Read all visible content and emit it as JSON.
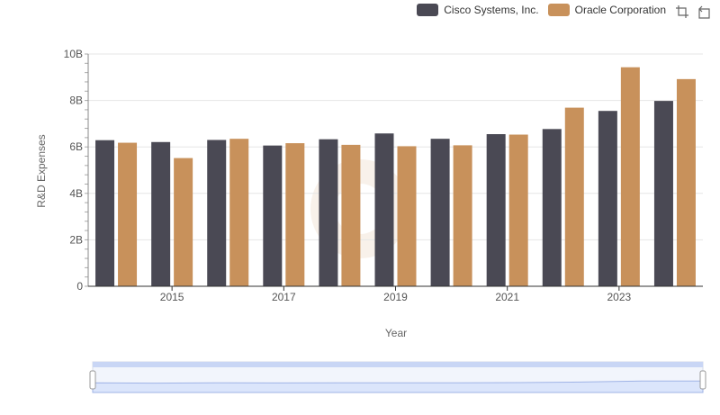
{
  "legend": {
    "items": [
      {
        "label": "Cisco Systems, Inc.",
        "color": "#4a4954"
      },
      {
        "label": "Oracle Corporation",
        "color": "#c8915b"
      }
    ]
  },
  "toolbar": {
    "icons": [
      "zoom-select-icon",
      "zoom-reset-icon"
    ]
  },
  "chart_data": {
    "type": "bar",
    "xlabel": "Year",
    "ylabel": "R&D Expenses",
    "ylim": [
      0,
      10000000000
    ],
    "y_ticks": [
      "0",
      "2B",
      "4B",
      "6B",
      "8B",
      "10B"
    ],
    "x_tick_labels": [
      "2015",
      "2017",
      "2019",
      "2021",
      "2023"
    ],
    "categories": [
      "2014",
      "2015",
      "2016",
      "2017",
      "2018",
      "2019",
      "2020",
      "2021",
      "2022",
      "2023",
      "2024"
    ],
    "series": [
      {
        "name": "Cisco Systems, Inc.",
        "color": "#4a4954",
        "values": [
          6290000000,
          6210000000,
          6300000000,
          6060000000,
          6330000000,
          6580000000,
          6350000000,
          6550000000,
          6770000000,
          7550000000,
          7980000000
        ]
      },
      {
        "name": "Oracle Corporation",
        "color": "#c8915b",
        "values": [
          6180000000,
          5520000000,
          6350000000,
          6160000000,
          6090000000,
          6030000000,
          6070000000,
          6530000000,
          7690000000,
          9430000000,
          8920000000
        ]
      }
    ],
    "grid": true,
    "legend_position": "top-right"
  },
  "datazoom": {
    "range": [
      0,
      100
    ]
  }
}
